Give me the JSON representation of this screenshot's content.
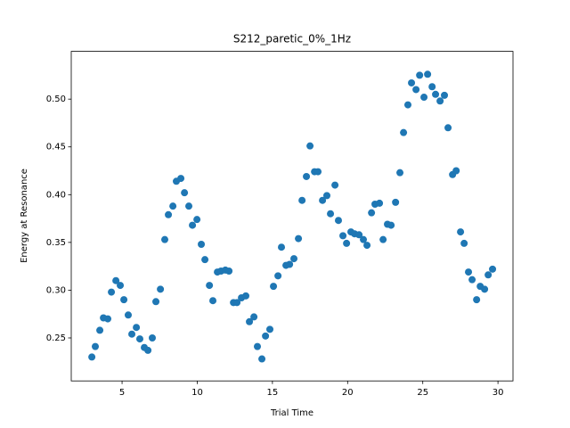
{
  "chart_data": {
    "type": "scatter",
    "title": "S212_paretic_0%_1Hz",
    "xlabel": "Trial Time",
    "ylabel": "Energy at Resonance",
    "color": "#1f77b4",
    "x": [
      2.99,
      3.22,
      3.52,
      3.76,
      4.05,
      4.29,
      4.59,
      4.88,
      5.12,
      5.41,
      5.65,
      5.95,
      6.18,
      6.48,
      6.72,
      7.01,
      7.25,
      7.55,
      7.84,
      8.08,
      8.38,
      8.61,
      8.91,
      9.15,
      9.44,
      9.68,
      9.98,
      10.27,
      10.51,
      10.81,
      11.04,
      11.34,
      11.58,
      11.87,
      12.11,
      12.41,
      12.64,
      12.94,
      13.23,
      13.47,
      13.77,
      14.0,
      14.3,
      14.54,
      14.83,
      15.07,
      15.37,
      15.6,
      15.9,
      16.14,
      16.43,
      16.73,
      16.97,
      17.26,
      17.5,
      17.8,
      18.03,
      18.33,
      18.62,
      18.86,
      19.16,
      19.39,
      19.69,
      19.93,
      20.22,
      20.46,
      20.76,
      21.05,
      21.29,
      21.59,
      21.82,
      22.12,
      22.36,
      22.65,
      22.89,
      23.19,
      23.48,
      23.72,
      24.01,
      24.25,
      24.55,
      24.79,
      25.08,
      25.32,
      25.62,
      25.85,
      26.15,
      26.44,
      26.68,
      26.98,
      27.22,
      27.51,
      27.75,
      28.04,
      28.28,
      28.58,
      28.82,
      29.11,
      29.35,
      29.64
    ],
    "values": [
      0.23,
      0.241,
      0.258,
      0.271,
      0.27,
      0.298,
      0.31,
      0.305,
      0.29,
      0.274,
      0.254,
      0.261,
      0.249,
      0.24,
      0.237,
      0.25,
      0.288,
      0.301,
      0.353,
      0.379,
      0.388,
      0.414,
      0.417,
      0.402,
      0.388,
      0.368,
      0.374,
      0.348,
      0.332,
      0.305,
      0.289,
      0.319,
      0.32,
      0.321,
      0.32,
      0.287,
      0.287,
      0.292,
      0.294,
      0.267,
      0.272,
      0.241,
      0.228,
      0.252,
      0.259,
      0.304,
      0.315,
      0.345,
      0.326,
      0.327,
      0.333,
      0.354,
      0.394,
      0.419,
      0.451,
      0.424,
      0.424,
      0.394,
      0.399,
      0.38,
      0.41,
      0.373,
      0.357,
      0.349,
      0.361,
      0.359,
      0.358,
      0.353,
      0.347,
      0.381,
      0.39,
      0.391,
      0.353,
      0.369,
      0.368,
      0.392,
      0.423,
      0.465,
      0.494,
      0.517,
      0.51,
      0.525,
      0.502,
      0.526,
      0.513,
      0.505,
      0.498,
      0.504,
      0.47,
      0.421,
      0.425,
      0.361,
      0.349,
      0.319,
      0.311,
      0.29,
      0.304,
      0.301,
      0.316,
      0.322
    ],
    "xlim": [
      1.62,
      31.0
    ],
    "ylim": [
      0.205,
      0.55
    ],
    "xticks": [
      5,
      10,
      15,
      20,
      25,
      30
    ],
    "yticks": [
      0.25,
      {
        "value": 0.3,
        "label": "0.30"
      },
      0.35,
      {
        "value": 0.4,
        "label": "0.40"
      },
      0.45,
      {
        "value": 0.5,
        "label": "0.50"
      }
    ]
  }
}
